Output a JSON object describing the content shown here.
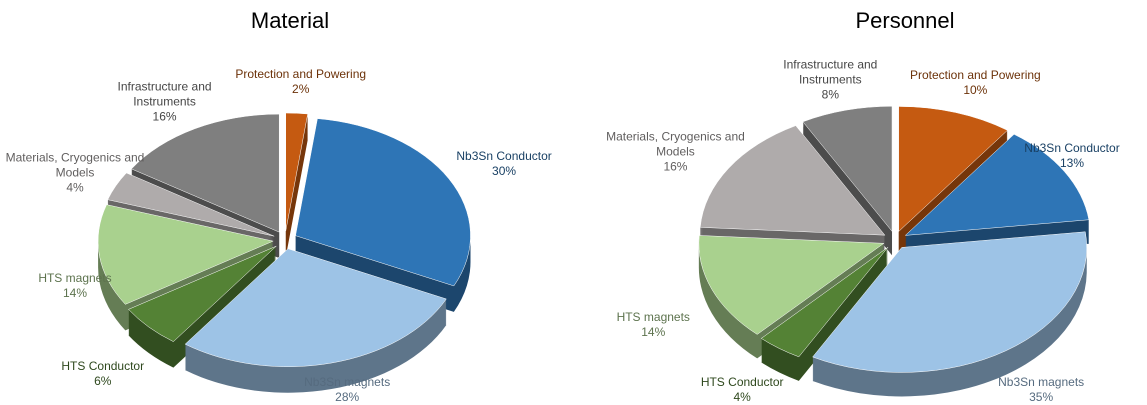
{
  "chart_data": [
    {
      "type": "pie",
      "title": "Material",
      "categories": [
        "Protection and Powering",
        "Nb3Sn Conductor",
        "Nb3Sn magnets",
        "HTS Conductor",
        "HTS magnets",
        "Materials, Cryogenics and Models",
        "Infrastructure and Instruments"
      ],
      "values": [
        2,
        30,
        28,
        6,
        14,
        4,
        16
      ],
      "value_labels": [
        "2%",
        "30%",
        "28%",
        "6%",
        "14%",
        "4%",
        "16%"
      ],
      "colors": [
        "#c55a11",
        "#2e75b6",
        "#9dc3e6",
        "#548235",
        "#a9d18e",
        "#afabab",
        "#7f7f7f"
      ]
    },
    {
      "type": "pie",
      "title": "Personnel",
      "categories": [
        "Protection and Powering",
        "Nb3Sn Conductor",
        "Nb3Sn magnets",
        "HTS Conductor",
        "HTS magnets",
        "Materials, Cryogenics and Models",
        "Infrastructure and Instruments"
      ],
      "values": [
        10,
        13,
        35,
        4,
        14,
        16,
        8
      ],
      "value_labels": [
        "10%",
        "13%",
        "35%",
        "4%",
        "14%",
        "16%",
        "8%"
      ],
      "colors": [
        "#c55a11",
        "#2e75b6",
        "#9dc3e6",
        "#548235",
        "#a9d18e",
        "#afabab",
        "#7f7f7f"
      ]
    }
  ]
}
